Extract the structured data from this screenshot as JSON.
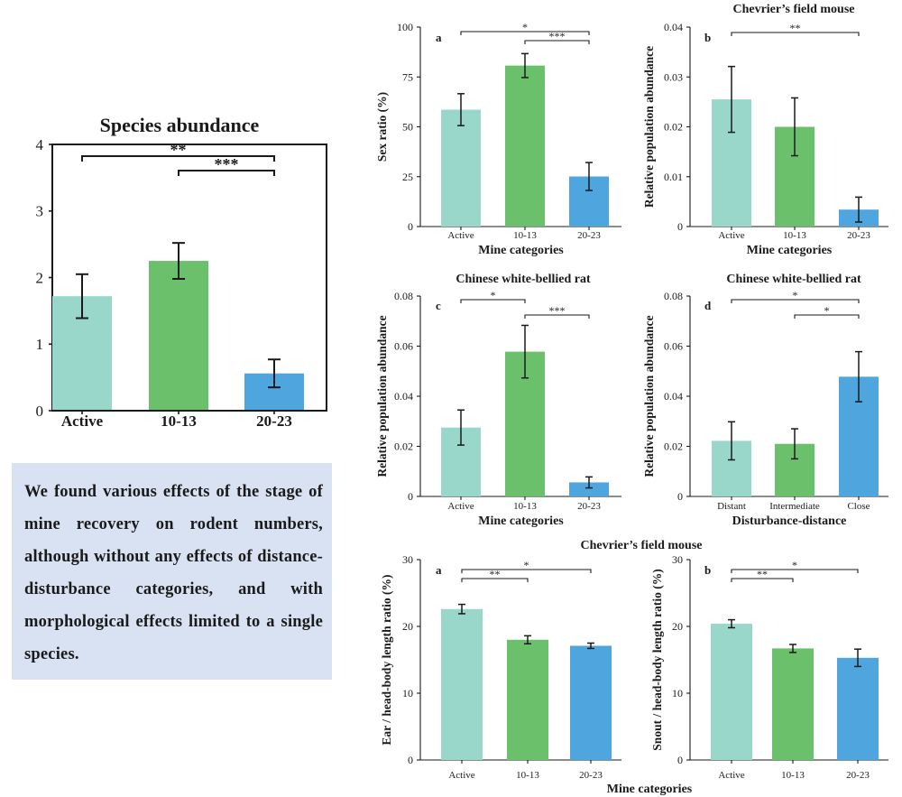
{
  "colors": {
    "active": "#9ad7cb",
    "mid": "#6ac06b",
    "late": "#4fa6de",
    "ink": "#1a1a1a"
  },
  "summary": {
    "text": "We found various effects of the stage of mine recovery on rodent numbers, although without any effects of distance-disturbance categories, and with morphological effects limited to a single species."
  },
  "group_titles": {
    "bottom": "Chevrier’s field mouse"
  },
  "chart_data": [
    {
      "type": "bar",
      "title": "Species abundance",
      "panel": "",
      "categories": [
        "Active",
        "10-13",
        "20-23"
      ],
      "values": [
        1.72,
        2.25,
        0.56
      ],
      "errors": [
        0.33,
        0.27,
        0.21
      ],
      "xlabel": "",
      "ylabel": "",
      "ylim": [
        0,
        4
      ],
      "yticks": [
        "0",
        "1",
        "2",
        "3",
        "4"
      ],
      "significance": [
        {
          "from": 0,
          "to": 2,
          "label": "**"
        },
        {
          "from": 1,
          "to": 2,
          "label": "***"
        }
      ]
    },
    {
      "type": "bar",
      "title": "",
      "panel": "a",
      "categories": [
        "Active",
        "10-13",
        "20-23"
      ],
      "values": [
        58.6,
        80.7,
        25.1
      ],
      "errors": [
        8.0,
        6.0,
        7.0
      ],
      "xlabel": "Mine categories",
      "ylabel": "Sex ratio (%)",
      "ylim": [
        0,
        100
      ],
      "yticks": [
        "0",
        "25",
        "50",
        "75",
        "100"
      ],
      "significance": [
        {
          "from": 0,
          "to": 2,
          "label": "*"
        },
        {
          "from": 1,
          "to": 2,
          "label": "***"
        }
      ]
    },
    {
      "type": "bar",
      "title": "Chevrier’s field mouse",
      "panel": "b",
      "categories": [
        "Active",
        "10-13",
        "20-23"
      ],
      "values": [
        0.0255,
        0.02,
        0.0034
      ],
      "errors": [
        0.0066,
        0.0058,
        0.0025
      ],
      "xlabel": "Mine categories",
      "ylabel": "Relative population abundance",
      "ylim": [
        0,
        0.04
      ],
      "yticks": [
        "0",
        "0.01",
        "0.02",
        "0.03",
        "0.04"
      ],
      "significance": [
        {
          "from": 0,
          "to": 2,
          "label": "**"
        }
      ]
    },
    {
      "type": "bar",
      "title": "Chinese white-bellied rat",
      "panel": "c",
      "categories": [
        "Active",
        "10-13",
        "20-23"
      ],
      "values": [
        0.0275,
        0.0578,
        0.0056
      ],
      "errors": [
        0.007,
        0.0105,
        0.0022
      ],
      "xlabel": "Mine categories",
      "ylabel": "Relative population abundance",
      "ylim": [
        0,
        0.08
      ],
      "yticks": [
        "0",
        "0.02",
        "0.04",
        "0.06",
        "0.08"
      ],
      "significance": [
        {
          "from": 0,
          "to": 1,
          "label": "*"
        },
        {
          "from": 1,
          "to": 2,
          "label": "***"
        }
      ]
    },
    {
      "type": "bar",
      "title": "Chinese white-bellied rat",
      "panel": "d",
      "categories": [
        "Distant",
        "Intermediate",
        "Close"
      ],
      "values": [
        0.0222,
        0.021,
        0.0478
      ],
      "errors": [
        0.0076,
        0.006,
        0.01
      ],
      "xlabel": "Disturbance-distance",
      "ylabel": "Relative population abundance",
      "ylim": [
        0,
        0.08
      ],
      "yticks": [
        "0",
        "0.02",
        "0.04",
        "0.06",
        "0.08"
      ],
      "significance": [
        {
          "from": 0,
          "to": 2,
          "label": "*"
        },
        {
          "from": 1,
          "to": 2,
          "label": "*"
        }
      ]
    },
    {
      "type": "bar",
      "title": "",
      "panel": "a",
      "categories": [
        "Active",
        "10-13",
        "20-23"
      ],
      "values": [
        22.6,
        18.0,
        17.1
      ],
      "errors": [
        0.7,
        0.6,
        0.4
      ],
      "xlabel": "",
      "ylabel": "Ear / head-body length ratio (%)",
      "ylim": [
        0,
        30
      ],
      "yticks": [
        "0",
        "10",
        "20",
        "30"
      ],
      "significance": [
        {
          "from": 0,
          "to": 2,
          "label": "*"
        },
        {
          "from": 0,
          "to": 1,
          "label": "**"
        }
      ]
    },
    {
      "type": "bar",
      "title": "",
      "panel": "b",
      "categories": [
        "Active",
        "10-13",
        "20-23"
      ],
      "values": [
        20.4,
        16.7,
        15.3
      ],
      "errors": [
        0.6,
        0.6,
        1.3
      ],
      "xlabel": "",
      "ylabel": "Snout / head-body length ratio (%)",
      "ylim": [
        0,
        30
      ],
      "yticks": [
        "0",
        "10",
        "20",
        "30"
      ],
      "significance": [
        {
          "from": 0,
          "to": 2,
          "label": "*"
        },
        {
          "from": 0,
          "to": 1,
          "label": "**"
        }
      ]
    }
  ],
  "shared_labels": {
    "bottom_xlabel": "Mine categories"
  }
}
